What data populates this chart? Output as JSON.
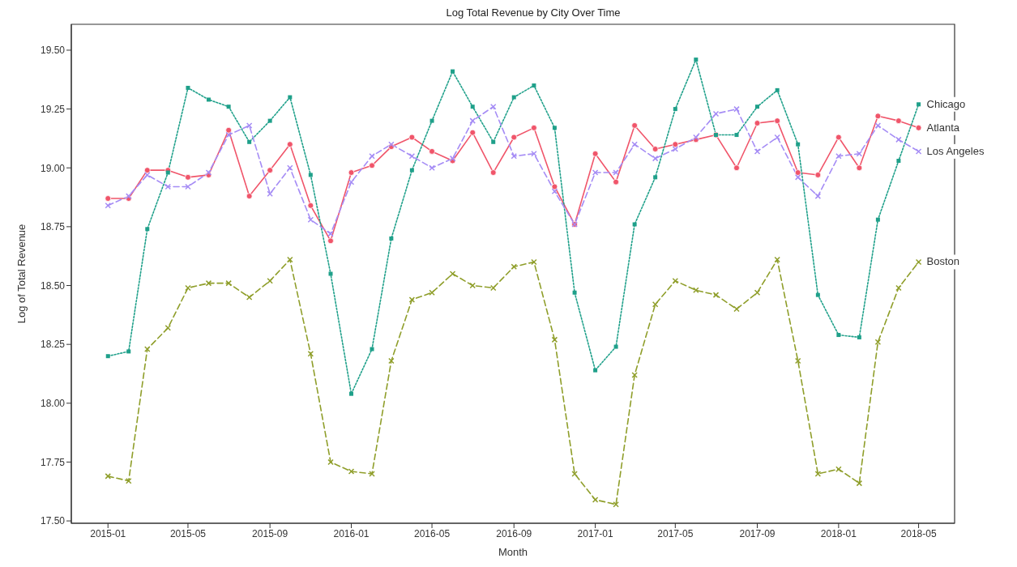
{
  "chart_data": {
    "type": "line",
    "title": "Log Total Revenue by City Over Time",
    "xlabel": "Month",
    "ylabel": "Log of Total Revenue",
    "x": [
      "2015-01",
      "2015-02",
      "2015-03",
      "2015-04",
      "2015-05",
      "2015-06",
      "2015-07",
      "2015-08",
      "2015-09",
      "2015-10",
      "2015-11",
      "2015-12",
      "2016-01",
      "2016-02",
      "2016-03",
      "2016-04",
      "2016-05",
      "2016-06",
      "2016-07",
      "2016-08",
      "2016-09",
      "2016-10",
      "2016-11",
      "2016-12",
      "2017-01",
      "2017-02",
      "2017-03",
      "2017-04",
      "2017-05",
      "2017-06",
      "2017-07",
      "2017-08",
      "2017-09",
      "2017-10",
      "2017-11",
      "2017-12",
      "2018-01",
      "2018-02",
      "2018-03",
      "2018-04",
      "2018-05"
    ],
    "series": [
      {
        "name": "Atlanta",
        "color": "#f0556a",
        "marker": "circle",
        "line_style": "solid",
        "values": [
          18.87,
          18.87,
          18.99,
          18.99,
          18.96,
          18.97,
          19.16,
          18.88,
          18.99,
          19.1,
          18.84,
          18.69,
          18.98,
          19.01,
          19.09,
          19.13,
          19.07,
          19.03,
          19.15,
          18.98,
          19.13,
          19.17,
          18.92,
          18.76,
          19.06,
          18.94,
          19.18,
          19.08,
          19.1,
          19.12,
          19.14,
          19.0,
          19.19,
          19.2,
          18.98,
          18.97,
          19.13,
          19.0,
          19.22,
          19.2,
          19.17
        ]
      },
      {
        "name": "Boston",
        "color": "#8f9e2a",
        "marker": "cross",
        "line_style": "dashed",
        "values": [
          17.69,
          17.67,
          18.23,
          18.32,
          18.49,
          18.51,
          18.51,
          18.45,
          18.52,
          18.61,
          18.21,
          17.75,
          17.71,
          17.7,
          18.18,
          18.44,
          18.47,
          18.55,
          18.5,
          18.49,
          18.58,
          18.6,
          18.27,
          17.7,
          17.59,
          17.57,
          18.12,
          18.42,
          18.52,
          18.48,
          18.46,
          18.4,
          18.47,
          18.61,
          18.18,
          17.7,
          17.72,
          17.66,
          18.26,
          18.49,
          18.6
        ]
      },
      {
        "name": "Chicago",
        "color": "#1fa08a",
        "marker": "square",
        "line_style": "dotted",
        "values": [
          18.2,
          18.22,
          18.74,
          18.98,
          19.34,
          19.29,
          19.26,
          19.11,
          19.2,
          19.3,
          18.97,
          18.55,
          18.04,
          18.23,
          18.7,
          18.99,
          19.2,
          19.41,
          19.26,
          19.11,
          19.3,
          19.35,
          19.17,
          18.47,
          18.14,
          18.24,
          18.76,
          18.96,
          19.25,
          19.46,
          19.14,
          19.14,
          19.26,
          19.33,
          19.1,
          18.46,
          18.29,
          18.28,
          18.78,
          19.03,
          19.27
        ]
      },
      {
        "name": "Los Angeles",
        "color": "#a58cf5",
        "marker": "cross",
        "line_style": "dashed",
        "values": [
          18.84,
          18.88,
          18.97,
          18.92,
          18.92,
          18.98,
          19.14,
          19.18,
          18.89,
          19.0,
          18.78,
          18.72,
          18.94,
          19.05,
          19.1,
          19.05,
          19.0,
          19.04,
          19.2,
          19.26,
          19.05,
          19.06,
          18.9,
          18.76,
          18.98,
          18.98,
          19.1,
          19.04,
          19.08,
          19.13,
          19.23,
          19.25,
          19.07,
          19.13,
          18.96,
          18.88,
          19.05,
          19.06,
          19.18,
          19.12,
          19.07
        ]
      }
    ],
    "xlim": [
      "2014-11-07",
      "2018-06-24"
    ],
    "xticks": [
      "2015-01",
      "2015-05",
      "2015-09",
      "2016-01",
      "2016-05",
      "2016-09",
      "2017-01",
      "2017-05",
      "2017-09",
      "2018-01",
      "2018-05"
    ],
    "ylim": [
      17.49,
      19.61
    ],
    "yticks": [
      {
        "value": 17.5,
        "label": "17.50"
      },
      {
        "value": 17.75,
        "label": "17.75"
      },
      {
        "value": 18,
        "label": "18.00"
      },
      {
        "value": 18.25,
        "label": "18.25"
      },
      {
        "value": 18.5,
        "label": "18.50"
      },
      {
        "value": 18.75,
        "label": "18.75"
      },
      {
        "value": 19,
        "label": "19.00"
      },
      {
        "value": 19.25,
        "label": "19.25"
      },
      {
        "value": 19.5,
        "label": "19.50"
      }
    ],
    "grid": false,
    "legend": false
  }
}
